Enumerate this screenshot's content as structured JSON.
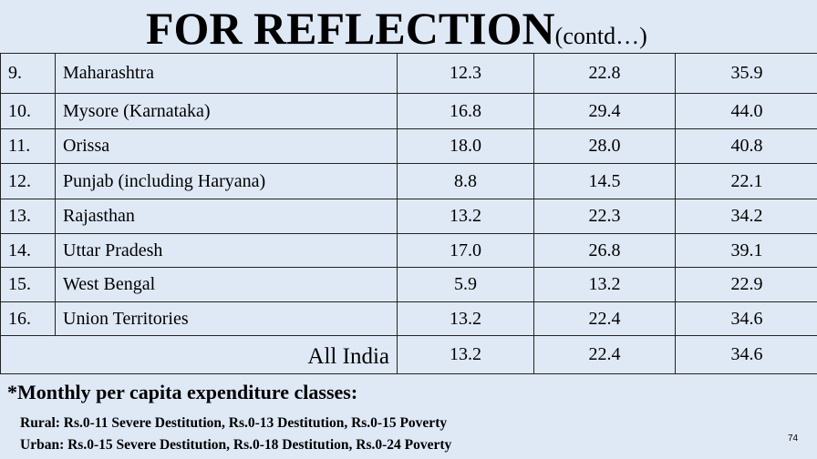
{
  "header": {
    "title": "FOR REFLECTION",
    "title_suffix": "(contd…)"
  },
  "table": {
    "rows": [
      [
        "9.",
        "Maharashtra",
        "12.3",
        "22.8",
        "35.9"
      ],
      [
        "10.",
        "Mysore (Karnataka)",
        "16.8",
        "29.4",
        "44.0"
      ],
      [
        "11.",
        "Orissa",
        "18.0",
        "28.0",
        "40.8"
      ],
      [
        "12.",
        "Punjab (including Haryana)",
        "8.8",
        "14.5",
        "22.1"
      ],
      [
        "13.",
        "Rajasthan",
        "13.2",
        "22.3",
        "34.2"
      ],
      [
        "14.",
        "Uttar Pradesh",
        "17.0",
        "26.8",
        "39.1"
      ],
      [
        "15.",
        "West Bengal",
        "5.9",
        "13.2",
        "22.9"
      ],
      [
        "16.",
        "Union Territories",
        "13.2",
        "22.4",
        "34.6"
      ]
    ],
    "total": {
      "label": "All India",
      "values": [
        "13.2",
        "22.4",
        "34.6"
      ]
    }
  },
  "footnote": {
    "heading": "*Monthly per capita expenditure classes:",
    "lines": [
      "Rural: Rs.0-11 Severe Destitution, Rs.0-13 Destitution, Rs.0-15 Poverty",
      "Urban: Rs.0-15 Severe Destitution, Rs.0-18 Destitution, Rs.0-24 Poverty"
    ]
  },
  "page_number": "74"
}
